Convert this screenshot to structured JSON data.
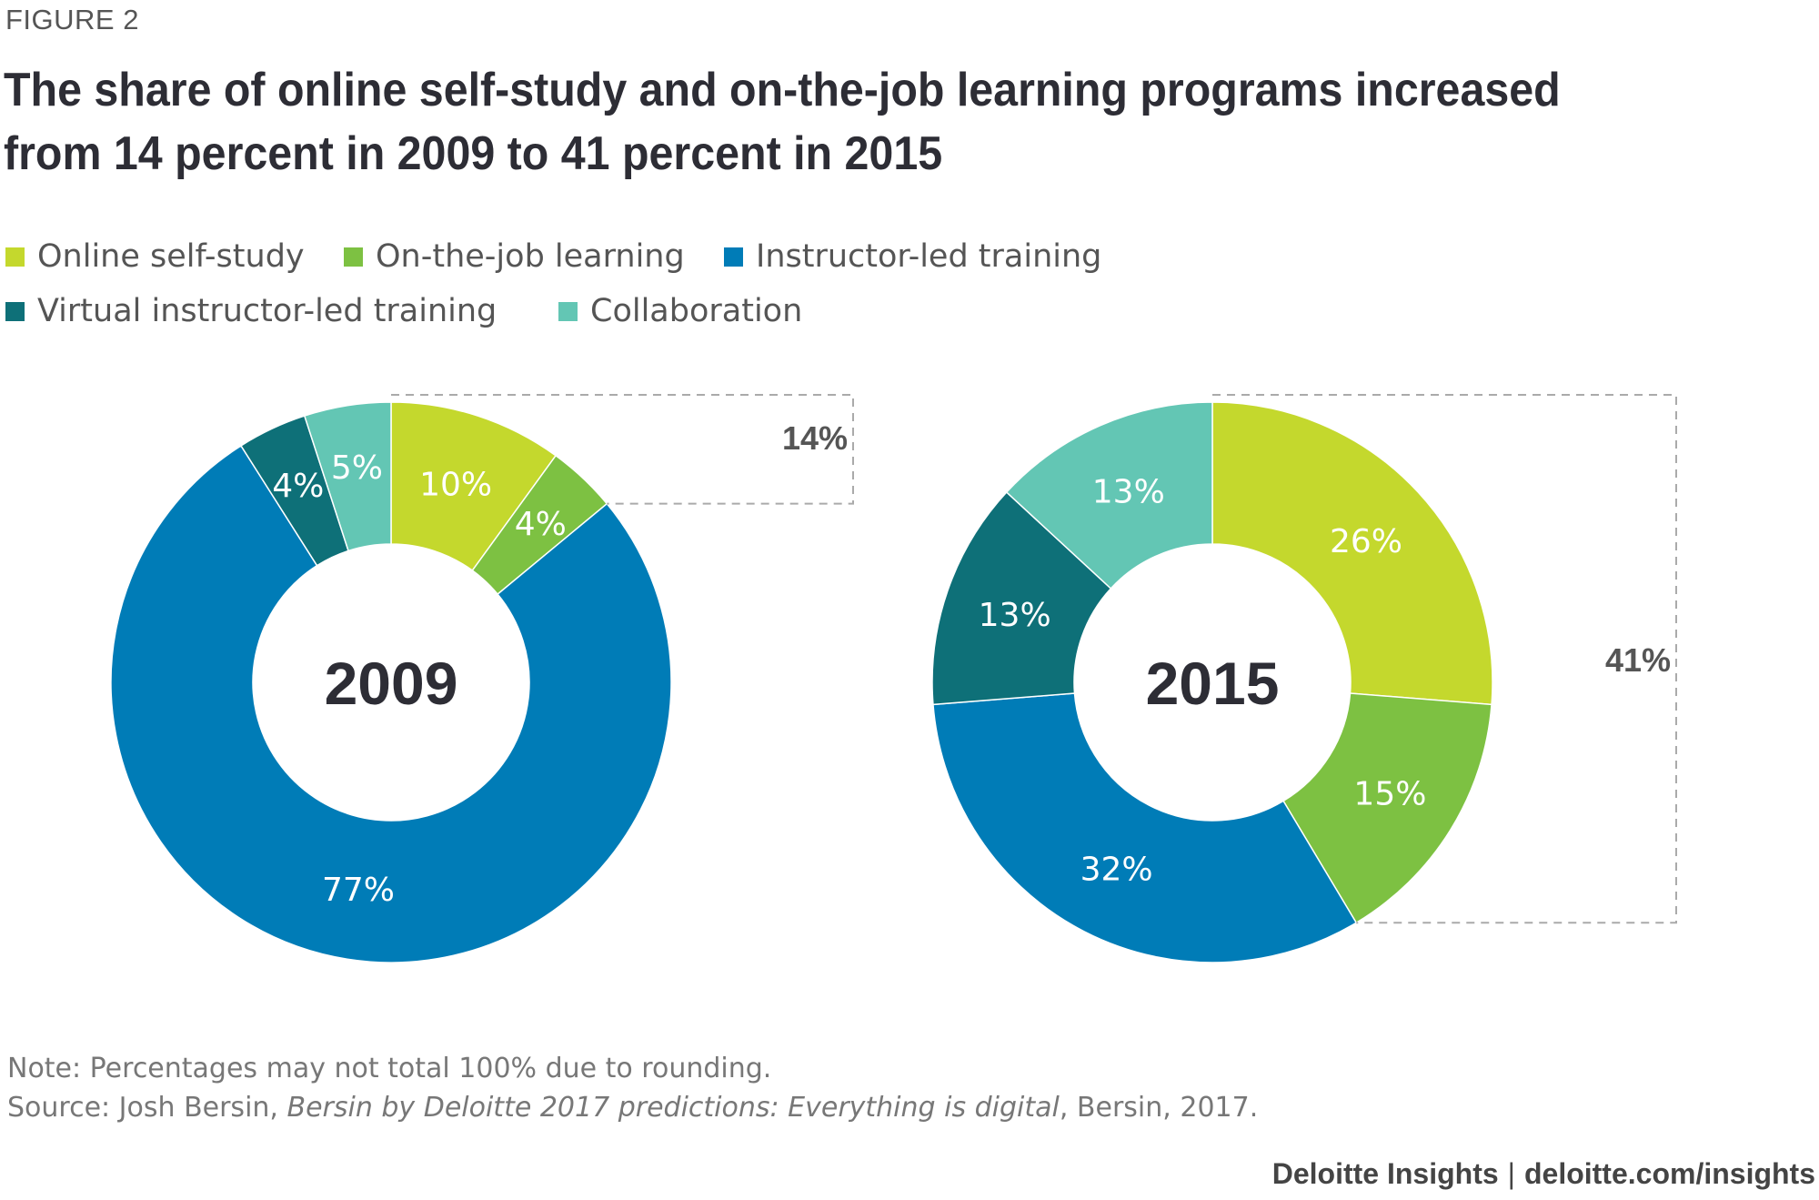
{
  "figure_label": "FIGURE 2",
  "title": "The share of online self-study and on-the-job learning programs increased from 14 percent in 2009 to 41 percent in 2015",
  "legend": [
    {
      "label": "Online self-study",
      "color": "#c4d82d"
    },
    {
      "label": "On-the-job learning",
      "color": "#7dc142"
    },
    {
      "label": "Instructor-led training",
      "color": "#007cb7"
    },
    {
      "label": "Virtual instructor-led training",
      "color": "#0e7078"
    },
    {
      "label": "Collaboration",
      "color": "#63c6b4"
    }
  ],
  "chart_data": [
    {
      "type": "donut",
      "center_label": "2009",
      "categories": [
        "Online self-study",
        "On-the-job learning",
        "Instructor-led training",
        "Virtual instructor-led training",
        "Collaboration"
      ],
      "values": [
        10,
        4,
        77,
        4,
        5
      ],
      "labels": [
        "10%",
        "4%",
        "77%",
        "4%",
        "5%"
      ],
      "bracket_label": "14%"
    },
    {
      "type": "donut",
      "center_label": "2015",
      "categories": [
        "Online self-study",
        "On-the-job learning",
        "Instructor-led training",
        "Virtual instructor-led training",
        "Collaboration"
      ],
      "values": [
        26,
        15,
        32,
        13,
        13
      ],
      "labels": [
        "26%",
        "15%",
        "32%",
        "13%",
        "13%"
      ],
      "bracket_label": "41%"
    }
  ],
  "note": "Note: Percentages may not total 100% due to rounding.",
  "source": {
    "prefix": "Source: Josh Bersin, ",
    "title": "Bersin by Deloitte 2017 predictions: Everything is digital",
    "suffix": ", Bersin, 2017."
  },
  "footer": {
    "brand": "Deloitte Insights",
    "separator": "|",
    "url": "deloitte.com/insights"
  }
}
